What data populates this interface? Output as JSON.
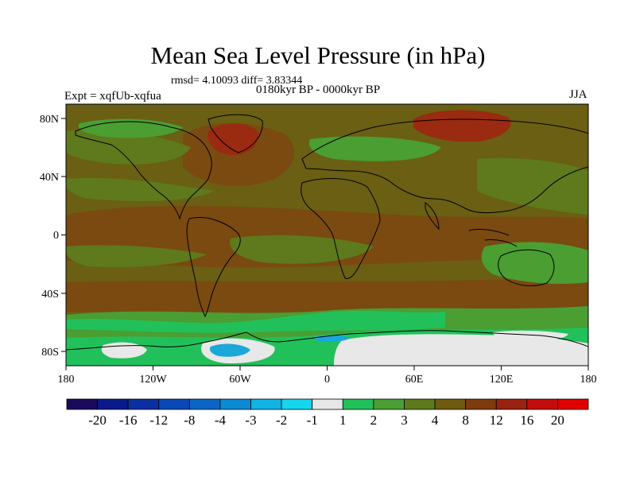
{
  "title": "Mean Sea Level Pressure (in hPa)",
  "stats_text": "rmsd= 4.10093 diff= 3.83344",
  "period_text": "0180kyr BP - 0000kyr BP",
  "experiment_text": "Expt = xqfUb-xqfua",
  "season_text": "JJA",
  "axes": {
    "x_ticks": [
      "180",
      "120W",
      "60W",
      "0",
      "60E",
      "120E",
      "180"
    ],
    "y_ticks": [
      "80N",
      "40N",
      "0",
      "40S",
      "80S"
    ]
  },
  "colorbar": {
    "labels": [
      "-20",
      "-16",
      "-12",
      "-8",
      "-4",
      "-3",
      "-2",
      "-1",
      "1",
      "2",
      "3",
      "4",
      "8",
      "12",
      "16",
      "20"
    ],
    "colors": [
      "#1a0a5c",
      "#0a1a8a",
      "#0b2fa0",
      "#0a48b8",
      "#0a66c4",
      "#0b8bd2",
      "#10b4e4",
      "#14d6ee",
      "#e6e6e6",
      "#22c05a",
      "#4a9e32",
      "#5e7a1c",
      "#6e5a10",
      "#7e3c0e",
      "#9a2210",
      "#c40c0c",
      "#e00000"
    ]
  },
  "map_colors": {
    "background": "#6a5f12",
    "brown": "#7a4a10",
    "reddish": "#9a2a10",
    "olive": "#5e7a1c",
    "green": "#4a9e32",
    "bright_green": "#22c05a",
    "white": "#e8e8e8",
    "cyan": "#1aa8d8",
    "coast": "#000000"
  }
}
